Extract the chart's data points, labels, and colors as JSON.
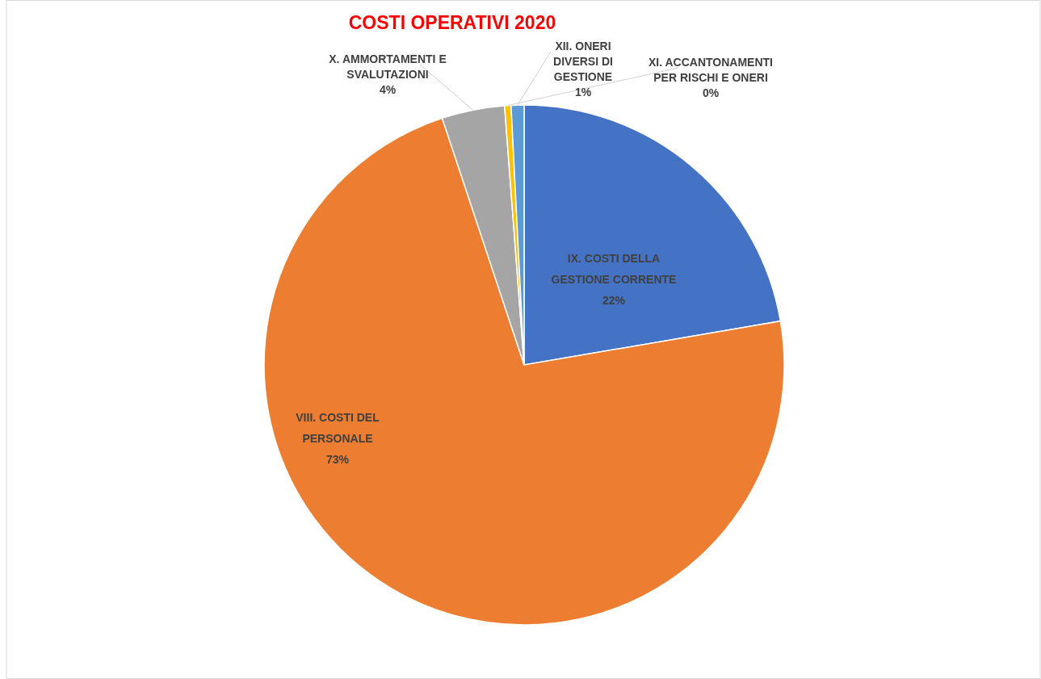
{
  "chart_data": {
    "type": "pie",
    "title": "COSTI OPERATIVI 2020",
    "categories": [
      "IX. COSTI DELLA GESTIONE CORRENTE",
      "VIII. COSTI DEL PERSONALE",
      "X. AMMORTAMENTI E SVALUTAZIONI",
      "XI. ACCANTONAMENTI PER RISCHI E ONERI",
      "XII. ONERI DIVERSI DI GESTIONE"
    ],
    "values": [
      22.3,
      72.6,
      3.9,
      0.4,
      0.8
    ],
    "value_labels": [
      "22%",
      "73%",
      "4%",
      "0%",
      "1%"
    ],
    "colors": [
      "#4472c4",
      "#ed7d31",
      "#a5a5a5",
      "#ffc000",
      "#5b9bd5"
    ]
  }
}
